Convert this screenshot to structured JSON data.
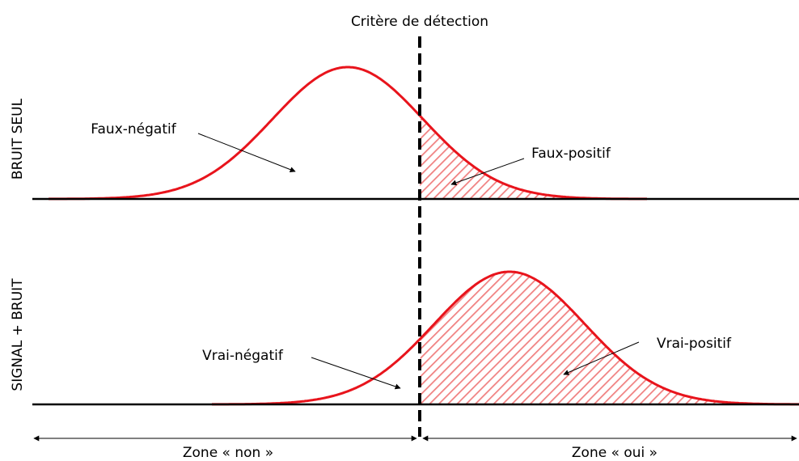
{
  "title": "Critère de détection",
  "panels": [
    {
      "label": "BRUIT SEUL",
      "regions": [
        "Faux-négatif",
        "Faux-positif"
      ]
    },
    {
      "label": "SIGNAL + BRUIT",
      "regions": [
        "Vrai-négatif",
        "Vrai-positif"
      ]
    }
  ],
  "zones": [
    "Zone « non »",
    "Zone « oui »"
  ]
}
